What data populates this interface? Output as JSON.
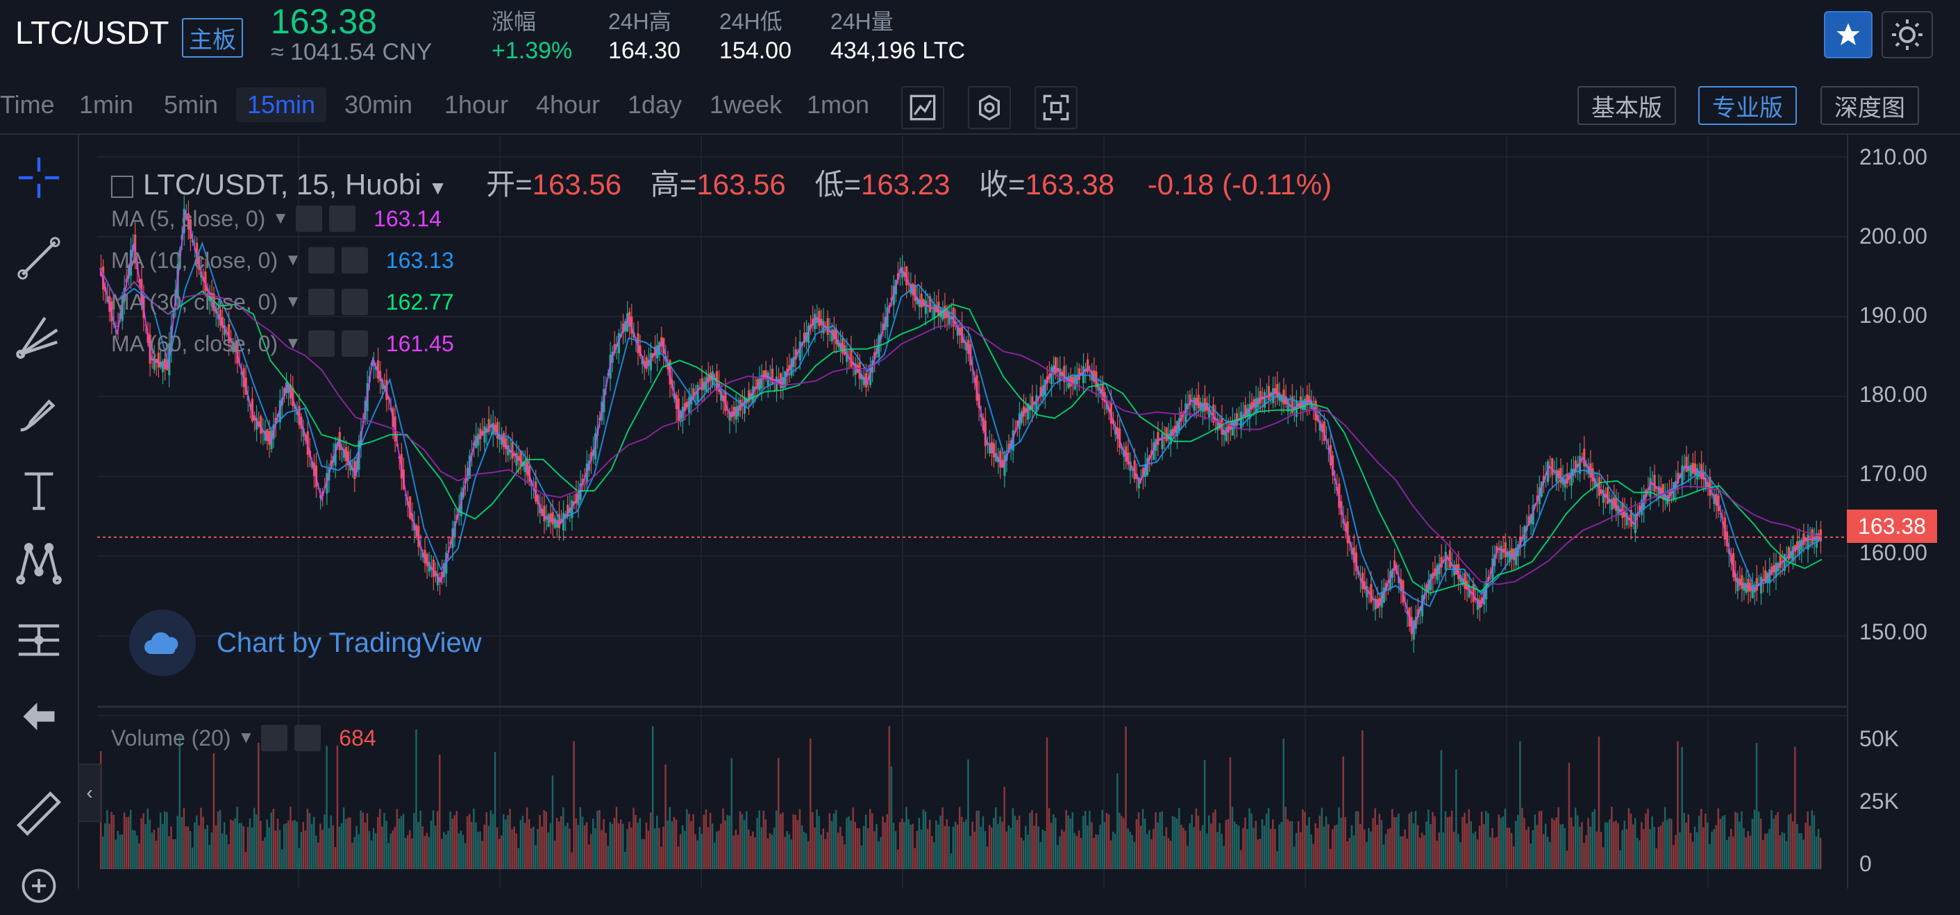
{
  "ticker": {
    "pair": "LTC/USDT",
    "tag": "主板",
    "price": "163.38",
    "price_cny": "≈ 1041.54 CNY",
    "change_label": "涨幅",
    "change_value": "+1.39%",
    "high_label": "24H高",
    "high_value": "164.30",
    "low_label": "24H低",
    "low_value": "154.00",
    "volume_label": "24H量",
    "volume_value": "434,196 LTC"
  },
  "toolbar": {
    "intervals": [
      "Time",
      "1min",
      "5min",
      "15min",
      "30min",
      "1hour",
      "4hour",
      "1day",
      "1week",
      "1mon"
    ],
    "active_interval": "15min",
    "modes": [
      "基本版",
      "专业版",
      "深度图"
    ],
    "active_mode": "专业版"
  },
  "legend": {
    "symbol": "LTC/USDT, 15, Huobi",
    "open_label": "开=",
    "open": "163.56",
    "high_label": "高=",
    "high": "163.56",
    "low_label": "低=",
    "low": "163.23",
    "close_label": "收=",
    "close": "163.38",
    "change": "-0.18 (-0.11%)"
  },
  "ma": [
    {
      "label": "MA (5, close, 0)",
      "value": "163.14",
      "color": "#e040fb"
    },
    {
      "label": "MA (10, close, 0)",
      "value": "163.13",
      "color": "#2196f3"
    },
    {
      "label": "MA (30, close, 0)",
      "value": "162.77",
      "color": "#00e676"
    },
    {
      "label": "MA (60, close, 0)",
      "value": "161.45",
      "color": "#9c27b0"
    }
  ],
  "watermark": "Chart by TradingView",
  "volume": {
    "label": "Volume (20)",
    "value": "684"
  },
  "colors": {
    "up": "#26a69a",
    "down": "#ef5350",
    "accent": "#2962ff"
  },
  "chart_data": {
    "type": "line",
    "title": "LTC/USDT, 15, Huobi",
    "ylim": [
      143,
      212
    ],
    "yticks": [
      "210.00",
      "200.00",
      "190.00",
      "180.00",
      "170.00",
      "160.00",
      "150.00"
    ],
    "current_price": "163.38",
    "close_series": [
      196,
      188,
      199,
      185,
      184,
      203,
      195,
      190,
      186,
      178,
      175,
      182,
      176,
      168,
      175,
      171,
      185,
      180,
      168,
      161,
      158,
      166,
      175,
      177,
      174,
      172,
      166,
      165,
      168,
      174,
      185,
      190,
      184,
      187,
      178,
      181,
      183,
      178,
      180,
      183,
      182,
      186,
      190,
      188,
      185,
      182,
      189,
      196,
      192,
      191,
      190,
      186,
      175,
      172,
      178,
      180,
      184,
      182,
      184,
      180,
      174,
      170,
      175,
      176,
      180,
      179,
      176,
      178,
      180,
      181,
      179,
      180,
      175,
      165,
      158,
      155,
      160,
      152,
      158,
      161,
      158,
      155,
      162,
      161,
      166,
      172,
      170,
      173,
      169,
      167,
      165,
      170,
      168,
      172,
      171,
      167,
      158,
      157,
      159,
      161,
      163,
      163.38
    ],
    "volume_yticks": [
      "50K",
      "25K",
      "0"
    ]
  }
}
